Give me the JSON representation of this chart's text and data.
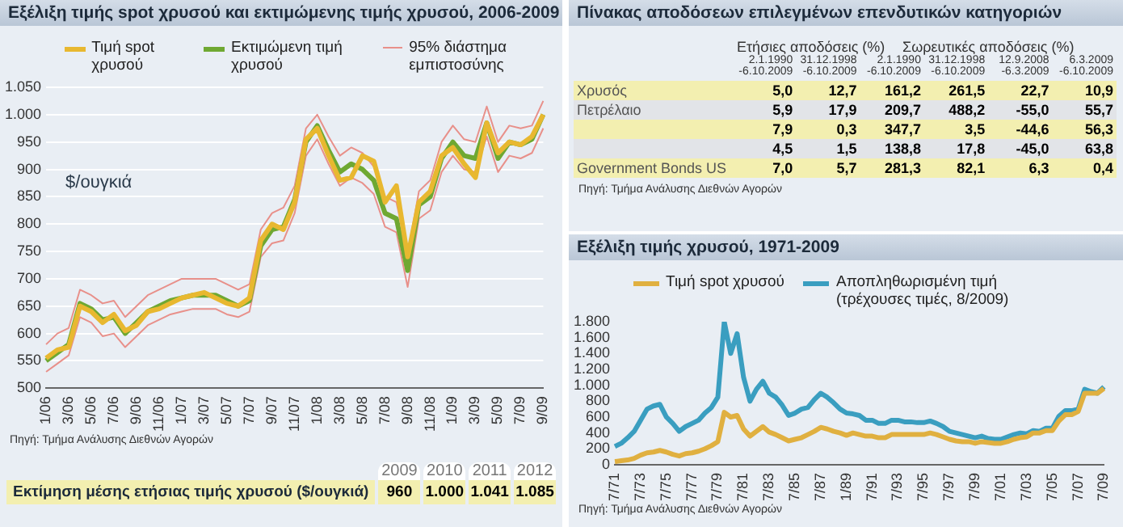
{
  "chart_data": [
    {
      "type": "line",
      "title": "Εξέλιξη τιμής spot χρυσού και εκτιμώμενης τιμής χρυσού, 2006-2009",
      "ylabel": "$/ουγκιά",
      "categories": [
        "1/06",
        null,
        "3/06",
        null,
        "5/06",
        null,
        "7/06",
        null,
        "9/06",
        null,
        "11/06",
        null,
        "1/07",
        null,
        "3/07",
        null,
        "5/07",
        null,
        "7/07",
        null,
        "9/07",
        null,
        "11/07",
        null,
        "1/08",
        null,
        "3/08",
        null,
        "5/08",
        null,
        "7/08",
        null,
        "9/08",
        null,
        "11/08",
        null,
        "1/09",
        null,
        "3/09",
        null,
        "5/09",
        null,
        "7/09",
        null,
        "9/09"
      ],
      "series": [
        {
          "name": "Τιμή spot χρυσού",
          "color": "#e8b830",
          "values": [
            555,
            570,
            575,
            650,
            640,
            620,
            635,
            605,
            615,
            640,
            645,
            655,
            665,
            670,
            675,
            665,
            655,
            650,
            665,
            770,
            800,
            790,
            840,
            955,
            975,
            925,
            880,
            885,
            925,
            915,
            840,
            870,
            740,
            840,
            860,
            925,
            940,
            910,
            885,
            985,
            930,
            950,
            945,
            960,
            1000
          ]
        },
        {
          "name": "Εκτιμώμενη τιμή χρυσού",
          "color": "#6fa832",
          "values": [
            550,
            565,
            580,
            655,
            645,
            625,
            630,
            600,
            620,
            640,
            650,
            660,
            665,
            670,
            670,
            670,
            660,
            650,
            660,
            760,
            790,
            795,
            845,
            950,
            980,
            935,
            895,
            910,
            900,
            880,
            820,
            810,
            715,
            835,
            850,
            920,
            950,
            925,
            920,
            985,
            920,
            950,
            945,
            955,
            1000
          ]
        },
        {
          "name": "95% διάστημα εμπιστοσύνης",
          "color": "#e8908a",
          "values": [
            580,
            600,
            610,
            680,
            670,
            655,
            660,
            630,
            650,
            670,
            680,
            690,
            700,
            700,
            700,
            700,
            690,
            680,
            690,
            790,
            820,
            830,
            870,
            975,
            1000,
            960,
            925,
            940,
            930,
            905,
            850,
            840,
            745,
            860,
            880,
            950,
            980,
            955,
            950,
            1015,
            950,
            980,
            975,
            980,
            1025
          ]
        },
        {
          "color": "#e8908a",
          "values": [
            530,
            545,
            560,
            630,
            620,
            595,
            600,
            575,
            595,
            615,
            625,
            635,
            640,
            645,
            645,
            645,
            635,
            630,
            640,
            740,
            765,
            770,
            820,
            925,
            955,
            910,
            870,
            885,
            875,
            855,
            795,
            785,
            685,
            810,
            825,
            895,
            925,
            900,
            895,
            960,
            895,
            925,
            920,
            930,
            975
          ]
        }
      ],
      "ylim": [
        500,
        1050
      ],
      "yticks": [
        500,
        550,
        600,
        650,
        700,
        750,
        800,
        850,
        900,
        950,
        {
          "value": 1000,
          "label": "1.000"
        },
        {
          "value": 1050,
          "label": "1.050"
        }
      ],
      "grid": "y",
      "legend": "top",
      "marker": "none",
      "annotations": [
        "Πηγή: Τμήμα Ανάλυσης Διεθνών Αγορών"
      ]
    },
    {
      "type": "heatmap",
      "categories": [
        "2009",
        "2010",
        "2011",
        "2012"
      ],
      "y_categories": [
        "Εκτίμηση μέσης ετήσιας τιμής χρυσού ($/ουγκιά)"
      ],
      "cells": [
        [
          960,
          1000,
          1041,
          1085
        ]
      ],
      "cell_labels": [
        [
          "960",
          "1.000",
          "1.041",
          "1.085"
        ]
      ]
    },
    {
      "type": "heatmap",
      "title": "Πίνακας αποδόσεων επιλεγμένων επενδυτικών κατηγοριών",
      "categories": [
        "2.1.1990 -6.10.2009",
        "31.12.1998 -6.10.2009",
        "2.1.1990 -6.10.2009",
        "31.12.1998 -6.10.2009",
        "12.9.2008 -6.3.2009",
        "6.3.2009 -6.10.2009"
      ],
      "y_categories": [
        "Χρυσός",
        "Πετρέλαιο",
        null,
        null,
        "Government Bonds US"
      ],
      "cells": [
        [
          5.0,
          12.7,
          161.2,
          261.5,
          22.7,
          10.9
        ],
        [
          5.9,
          17.9,
          209.7,
          488.2,
          -55.0,
          55.7
        ],
        [
          7.9,
          0.3,
          347.7,
          3.5,
          -44.6,
          56.3
        ],
        [
          4.5,
          1.5,
          138.8,
          17.8,
          -45.0,
          63.8
        ],
        [
          7.0,
          5.7,
          281.3,
          82.1,
          6.3,
          0.4
        ]
      ],
      "cell_labels": [
        [
          "5,0",
          "12,7",
          "161,2",
          "261,5",
          "22,7",
          "10,9"
        ],
        [
          "5,9",
          "17,9",
          "209,7",
          "488,2",
          "-55,0",
          "55,7"
        ],
        [
          "7,9",
          "0,3",
          "347,7",
          "3,5",
          "-44,6",
          "56,3"
        ],
        [
          "4,5",
          "1,5",
          "138,8",
          "17,8",
          "-45,0",
          "63,8"
        ],
        [
          "7,0",
          "5,7",
          "281,3",
          "82,1",
          "6,3",
          "0,4"
        ]
      ],
      "annotations": [
        "Ετήσιες αποδόσεις (%)",
        "Σωρευτικές αποδόσεις (%)",
        "Πηγή: Τμήμα Ανάλυσης Διεθνών Αγορών"
      ]
    },
    {
      "type": "line",
      "title": "Εξέλιξη τιμής χρυσού, 1971-2009",
      "categories": [
        "7/71",
        null,
        null,
        null,
        "7/73",
        null,
        null,
        null,
        "7/75",
        null,
        null,
        null,
        "7/77",
        null,
        null,
        null,
        "7/79",
        null,
        null,
        null,
        "7/81",
        null,
        null,
        null,
        "7/83",
        null,
        null,
        null,
        "7/85",
        null,
        null,
        null,
        "7/87",
        null,
        null,
        null,
        "1/89",
        null,
        null,
        null,
        "7/91",
        null,
        null,
        null,
        "7/93",
        null,
        null,
        null,
        "7/95",
        null,
        null,
        null,
        "7/97",
        null,
        null,
        null,
        "7/99",
        null,
        null,
        null,
        "7/01",
        null,
        null,
        null,
        "7/03",
        null,
        null,
        null,
        "7/05",
        null,
        null,
        null,
        "7/07",
        null,
        null,
        null,
        "7/09"
      ],
      "series": [
        {
          "name": "Τιμή spot χρυσού",
          "color": "#e0b040",
          "values": [
            40,
            50,
            60,
            80,
            120,
            150,
            160,
            180,
            160,
            130,
            110,
            140,
            150,
            170,
            200,
            240,
            290,
            660,
            600,
            620,
            450,
            360,
            420,
            480,
            410,
            380,
            340,
            300,
            320,
            340,
            380,
            420,
            470,
            450,
            420,
            400,
            370,
            400,
            380,
            360,
            360,
            340,
            340,
            380,
            380,
            380,
            380,
            380,
            380,
            400,
            380,
            350,
            320,
            300,
            290,
            290,
            270,
            290,
            280,
            270,
            270,
            290,
            320,
            340,
            350,
            400,
            400,
            430,
            430,
            550,
            630,
            630,
            670,
            900,
            900,
            900,
            960
          ]
        },
        {
          "name": "Αποπληθωρισμένη τιμή (τρέχουσες τιμές, 8/2009)",
          "color": "#3a9ec0",
          "values": [
            230,
            270,
            340,
            420,
            560,
            700,
            740,
            760,
            600,
            520,
            420,
            480,
            520,
            560,
            650,
            720,
            850,
            1800,
            1400,
            1650,
            1100,
            800,
            950,
            1050,
            900,
            850,
            750,
            620,
            650,
            700,
            720,
            820,
            900,
            850,
            780,
            700,
            650,
            640,
            620,
            560,
            560,
            520,
            520,
            560,
            560,
            540,
            540,
            530,
            530,
            550,
            520,
            480,
            420,
            400,
            380,
            360,
            340,
            360,
            330,
            320,
            320,
            350,
            380,
            400,
            390,
            430,
            420,
            460,
            460,
            610,
            680,
            680,
            700,
            950,
            920,
            900,
            980
          ]
        }
      ],
      "ylim": [
        0,
        1800
      ],
      "yticks": [
        0,
        200,
        400,
        600,
        800,
        {
          "value": 1000,
          "label": "1.000"
        },
        {
          "value": 1200,
          "label": "1.200"
        },
        {
          "value": 1400,
          "label": "1.400"
        },
        {
          "value": 1600,
          "label": "1.600"
        },
        {
          "value": 1800,
          "label": "1.800"
        }
      ],
      "legend": "top",
      "marker": "none",
      "annotations": [
        "Πηγή: Τμήμα Ανάλυσης Διεθνών Αγορών"
      ]
    }
  ]
}
